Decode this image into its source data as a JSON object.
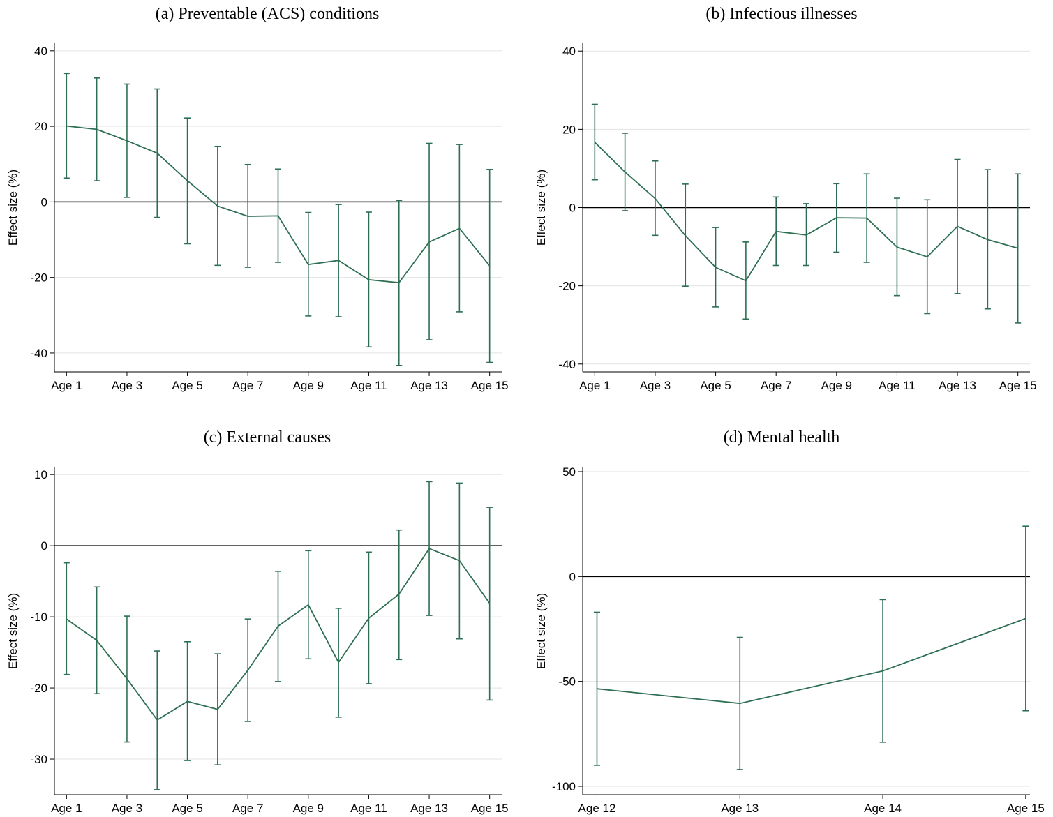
{
  "colors": {
    "series": "#2e6f54"
  },
  "chart_data": [
    {
      "type": "line",
      "title": "(a)  Preventable (ACS) conditions",
      "ylabel": "Effect size (%)",
      "ylim": [
        -45,
        42
      ],
      "yticks": [
        40,
        20,
        0,
        -20,
        -40
      ],
      "x": [
        1,
        2,
        3,
        4,
        5,
        6,
        7,
        8,
        9,
        10,
        11,
        12,
        13,
        14,
        15
      ],
      "xticks": [
        {
          "value": 1,
          "label": "Age 1"
        },
        {
          "value": 3,
          "label": "Age 3"
        },
        {
          "value": 5,
          "label": "Age 5"
        },
        {
          "value": 7,
          "label": "Age 7"
        },
        {
          "value": 9,
          "label": "Age 9"
        },
        {
          "value": 11,
          "label": "Age 11"
        },
        {
          "value": 13,
          "label": "Age 13"
        },
        {
          "value": 15,
          "label": "Age 15"
        }
      ],
      "xlim": [
        0.6,
        15.4
      ],
      "reference_line": 0,
      "series": [
        {
          "estimate": [
            20.1,
            19.2,
            16.2,
            12.9,
            5.6,
            -1.1,
            -3.8,
            -3.7,
            -16.6,
            -15.5,
            -20.6,
            -21.4,
            -10.6,
            -7.0,
            -16.9
          ],
          "ci_low": [
            6.3,
            5.6,
            1.2,
            -4.1,
            -11.1,
            -16.8,
            -17.3,
            -16.0,
            -30.2,
            -30.4,
            -38.4,
            -43.3,
            -36.5,
            -29.1,
            -42.5
          ],
          "ci_high": [
            34.0,
            32.8,
            31.2,
            29.9,
            22.2,
            14.7,
            9.9,
            8.7,
            -2.8,
            -0.7,
            -2.7,
            0.4,
            15.5,
            15.2,
            8.6
          ]
        }
      ]
    },
    {
      "type": "line",
      "title": "(b)  Infectious illnesses",
      "ylabel": "Effect size (%)",
      "ylim": [
        -42,
        42
      ],
      "yticks": [
        40,
        20,
        0,
        -20,
        -40
      ],
      "x": [
        1,
        2,
        3,
        4,
        5,
        6,
        7,
        8,
        9,
        10,
        11,
        12,
        13,
        14,
        15
      ],
      "xticks": [
        {
          "value": 1,
          "label": "Age 1"
        },
        {
          "value": 3,
          "label": "Age 3"
        },
        {
          "value": 5,
          "label": "Age 5"
        },
        {
          "value": 7,
          "label": "Age 7"
        },
        {
          "value": 9,
          "label": "Age 9"
        },
        {
          "value": 11,
          "label": "Age 11"
        },
        {
          "value": 13,
          "label": "Age 13"
        },
        {
          "value": 15,
          "label": "Age 15"
        }
      ],
      "xlim": [
        0.6,
        15.4
      ],
      "reference_line": 0,
      "series": [
        {
          "estimate": [
            16.7,
            9.1,
            2.3,
            -7.2,
            -15.3,
            -18.7,
            -6.1,
            -7.0,
            -2.6,
            -2.7,
            -10.1,
            -12.6,
            -4.8,
            -8.2,
            -10.4
          ],
          "ci_low": [
            7.1,
            -0.8,
            -7.1,
            -20.1,
            -25.4,
            -28.5,
            -14.8,
            -14.8,
            -11.4,
            -14.0,
            -22.5,
            -27.1,
            -22.0,
            -25.9,
            -29.5
          ],
          "ci_high": [
            26.4,
            19.0,
            11.9,
            6.0,
            -5.1,
            -8.8,
            2.7,
            1.0,
            6.1,
            8.6,
            2.4,
            2.0,
            12.3,
            9.7,
            8.6
          ]
        }
      ]
    },
    {
      "type": "line",
      "title": "(c)  External causes",
      "ylabel": "Effect size (%)",
      "ylim": [
        -35,
        11
      ],
      "yticks": [
        10,
        0,
        -10,
        -20,
        -30
      ],
      "x": [
        1,
        2,
        3,
        4,
        5,
        6,
        7,
        8,
        9,
        10,
        11,
        12,
        13,
        14,
        15
      ],
      "xticks": [
        {
          "value": 1,
          "label": "Age 1"
        },
        {
          "value": 3,
          "label": "Age 3"
        },
        {
          "value": 5,
          "label": "Age 5"
        },
        {
          "value": 7,
          "label": "Age 7"
        },
        {
          "value": 9,
          "label": "Age 9"
        },
        {
          "value": 11,
          "label": "Age 11"
        },
        {
          "value": 13,
          "label": "Age 13"
        },
        {
          "value": 15,
          "label": "Age 15"
        }
      ],
      "xlim": [
        0.6,
        15.4
      ],
      "reference_line": 0,
      "series": [
        {
          "estimate": [
            -10.3,
            -13.3,
            -18.7,
            -24.5,
            -21.9,
            -23.0,
            -17.5,
            -11.3,
            -8.3,
            -16.4,
            -10.2,
            -6.8,
            -0.4,
            -2.1,
            -8.1
          ],
          "ci_low": [
            -18.1,
            -20.8,
            -27.6,
            -34.3,
            -30.2,
            -30.8,
            -24.7,
            -19.1,
            -15.9,
            -24.1,
            -19.4,
            -16.0,
            -9.8,
            -13.1,
            -21.7
          ],
          "ci_high": [
            -2.4,
            -5.8,
            -9.9,
            -14.8,
            -13.5,
            -15.2,
            -10.3,
            -3.6,
            -0.7,
            -8.8,
            -0.9,
            2.2,
            9.0,
            8.8,
            5.4
          ]
        }
      ]
    },
    {
      "type": "line",
      "title": "(d)  Mental health",
      "ylabel": "Effect size (%)",
      "ylim": [
        -104,
        52
      ],
      "yticks": [
        50,
        0,
        -50,
        -100
      ],
      "x": [
        12,
        13,
        14,
        15
      ],
      "xticks": [
        {
          "value": 12,
          "label": "Age 12"
        },
        {
          "value": 13,
          "label": "Age 13"
        },
        {
          "value": 14,
          "label": "Age 14"
        },
        {
          "value": 15,
          "label": "Age 15"
        }
      ],
      "xlim": [
        11.9,
        15.03
      ],
      "reference_line": 0,
      "series": [
        {
          "estimate": [
            -53.5,
            -60.5,
            -45.0,
            -20.0
          ],
          "ci_low": [
            -90.0,
            -92.0,
            -79.0,
            -64.0
          ],
          "ci_high": [
            -17.0,
            -29.0,
            -11.0,
            24.0
          ]
        }
      ]
    }
  ]
}
